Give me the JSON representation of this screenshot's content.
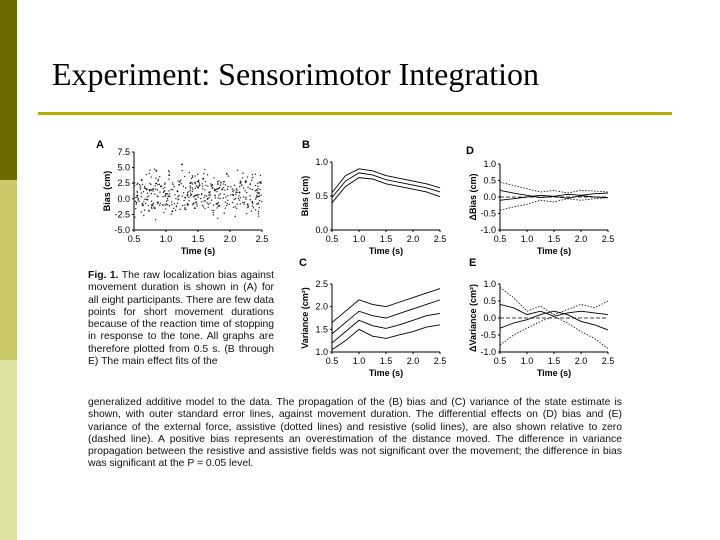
{
  "slide": {
    "title": "Experiment: Sensorimotor Integration",
    "accent_color": "#b3ae00",
    "sidebar_colors": [
      "#6b6b00",
      "#c9c96a",
      "#e0e0a0"
    ]
  },
  "figure": {
    "caption": {
      "lead": "Fig. 1.",
      "left_text": "The raw localization bias against movement duration is shown in (A) for all eight participants. There are few data points for short movement durations because of the reaction time of stopping in response to the tone. All graphs are therefore plotted from 0.5 s. (B through E) The main effect fits of the",
      "full_text": "generalized additive model to the data. The propagation of the (B) bias and (C) variance of the state estimate is shown, with outer standard error lines, against movement duration. The differential effects on (D) bias and (E) variance of the external force, assistive (dotted lines) and resistive (solid lines), are also shown relative to zero (dashed line). A positive bias represents an overestimation of the distance moved. The difference in variance propagation between the resistive and assistive fields was not significant over the movement; the difference in bias was significant at the P = 0.05 level."
    },
    "panels": {
      "A": {
        "letter": "A",
        "ylabel": "Bias (cm)",
        "xlabel": "Time (s)",
        "yticks": [
          "7.5",
          "5.0",
          "2.5",
          "0.0",
          "-2.5",
          "-5.0"
        ],
        "xticks": [
          "0.5",
          "1.0",
          "1.5",
          "2.0",
          "2.5"
        ]
      },
      "B": {
        "letter": "B",
        "ylabel": "Bias (cm)",
        "xlabel": "Time (s)",
        "yticks": [
          "1.0",
          "0.5",
          "0.0"
        ],
        "xticks": [
          "0.5",
          "1.0",
          "1.5",
          "2.0",
          "2.5"
        ]
      },
      "C": {
        "letter": "C",
        "ylabel": "Variance (cm²)",
        "xlabel": "Time (s)",
        "yticks": [
          "2.5",
          "2.0",
          "1.5",
          "1.0"
        ],
        "xticks": [
          "0.5",
          "1.0",
          "1.5",
          "2.0",
          "2.5"
        ]
      },
      "D": {
        "letter": "D",
        "ylabel": "ΔBias (cm)",
        "xlabel": "Time (s)",
        "yticks": [
          "1.0",
          "0.5",
          "0.0",
          "-0.5",
          "-1.0"
        ],
        "xticks": [
          "0.5",
          "1.0",
          "1.5",
          "2.0",
          "2.5"
        ]
      },
      "E": {
        "letter": "E",
        "ylabel": "ΔVariance (cm²)",
        "xlabel": "Time (s)",
        "yticks": [
          "1.0",
          "0.5",
          "0.0",
          "-0.5",
          "-1.0"
        ],
        "xticks": [
          "0.5",
          "1.0",
          "1.5",
          "2.0",
          "2.5"
        ]
      }
    }
  },
  "chart_data": [
    {
      "panel": "A",
      "type": "scatter",
      "xlabel": "Time (s)",
      "ylabel": "Bias (cm)",
      "xlim": [
        0.5,
        2.5
      ],
      "ylim": [
        -5.0,
        7.5
      ],
      "x": [
        0.55,
        0.62,
        0.7,
        0.78,
        0.85,
        0.92,
        1.0,
        1.05,
        1.1,
        1.18,
        1.25,
        1.3,
        1.38,
        1.45,
        1.5,
        1.58,
        1.65,
        1.72,
        1.8,
        1.88,
        1.95,
        2.05,
        2.15,
        2.25,
        2.35,
        2.45
      ],
      "y": [
        0.5,
        3.0,
        1.5,
        -1.0,
        4.5,
        2.0,
        0.8,
        3.8,
        -2.0,
        1.2,
        5.5,
        0.2,
        2.5,
        -1.5,
        1.8,
        3.2,
        0.0,
        2.2,
        -0.8,
        1.5,
        4.0,
        0.6,
        1.0,
        2.8,
        -0.5,
        0.9
      ]
    },
    {
      "panel": "B",
      "type": "line",
      "xlabel": "Time (s)",
      "ylabel": "Bias (cm)",
      "xlim": [
        0.5,
        2.5
      ],
      "ylim": [
        0.0,
        1.0
      ],
      "x": [
        0.5,
        0.75,
        1.0,
        1.25,
        1.5,
        1.75,
        2.0,
        2.25,
        2.5
      ],
      "series": [
        {
          "values": [
            0.55,
            0.8,
            0.9,
            0.87,
            0.8,
            0.76,
            0.72,
            0.68,
            0.62
          ]
        },
        {
          "values": [
            0.48,
            0.72,
            0.84,
            0.81,
            0.74,
            0.7,
            0.66,
            0.62,
            0.56
          ]
        },
        {
          "values": [
            0.4,
            0.64,
            0.77,
            0.75,
            0.68,
            0.64,
            0.6,
            0.56,
            0.49
          ]
        }
      ]
    },
    {
      "panel": "C",
      "type": "line",
      "xlabel": "Time (s)",
      "ylabel": "Variance (cm²)",
      "xlim": [
        0.5,
        2.5
      ],
      "ylim": [
        1.0,
        2.5
      ],
      "x": [
        0.5,
        0.75,
        1.0,
        1.25,
        1.5,
        1.75,
        2.0,
        2.25,
        2.5
      ],
      "series": [
        {
          "values": [
            1.65,
            1.9,
            2.15,
            2.05,
            2.0,
            2.1,
            2.2,
            2.3,
            2.4
          ]
        },
        {
          "values": [
            1.4,
            1.65,
            1.9,
            1.8,
            1.75,
            1.85,
            1.95,
            2.05,
            2.15
          ]
        },
        {
          "values": [
            1.2,
            1.45,
            1.7,
            1.58,
            1.52,
            1.6,
            1.7,
            1.8,
            1.85
          ]
        },
        {
          "values": [
            1.05,
            1.25,
            1.5,
            1.35,
            1.3,
            1.38,
            1.45,
            1.55,
            1.6
          ]
        }
      ]
    },
    {
      "panel": "D",
      "type": "line",
      "xlabel": "Time (s)",
      "ylabel": "ΔBias (cm)",
      "xlim": [
        0.5,
        2.5
      ],
      "ylim": [
        -1.0,
        1.0
      ],
      "x": [
        0.5,
        0.75,
        1.0,
        1.25,
        1.5,
        1.75,
        2.0,
        2.25,
        2.5
      ],
      "series": [
        {
          "values": [
            0.45,
            0.35,
            0.25,
            0.15,
            0.2,
            0.12,
            0.2,
            0.18,
            0.15
          ]
        },
        {
          "values": [
            0.2,
            0.12,
            0.05,
            -0.02,
            0.02,
            -0.04,
            0.04,
            0.0,
            -0.02
          ]
        },
        {
          "values": [
            0.0,
            0.0,
            0.0,
            0.0,
            0.0,
            0.0,
            0.0,
            0.0,
            0.0
          ]
        },
        {
          "values": [
            -0.1,
            -0.05,
            0.0,
            0.05,
            0.02,
            0.08,
            0.05,
            0.1,
            0.12
          ]
        },
        {
          "values": [
            -0.4,
            -0.3,
            -0.22,
            -0.1,
            -0.15,
            -0.05,
            -0.1,
            -0.05,
            -0.02
          ]
        }
      ]
    },
    {
      "panel": "E",
      "type": "line",
      "xlabel": "Time (s)",
      "ylabel": "ΔVariance (cm²)",
      "xlim": [
        0.5,
        2.5
      ],
      "ylim": [
        -1.0,
        1.0
      ],
      "x": [
        0.5,
        0.75,
        1.0,
        1.25,
        1.5,
        1.75,
        2.0,
        2.25,
        2.5
      ],
      "series": [
        {
          "values": [
            0.9,
            0.6,
            0.2,
            0.35,
            0.1,
            0.25,
            0.4,
            0.3,
            0.5
          ]
        },
        {
          "values": [
            0.4,
            0.3,
            0.1,
            0.2,
            0.05,
            0.15,
            0.2,
            0.15,
            0.1
          ]
        },
        {
          "values": [
            0.0,
            0.0,
            0.0,
            0.0,
            0.0,
            0.0,
            0.0,
            0.0,
            0.0
          ]
        },
        {
          "values": [
            -0.3,
            -0.15,
            -0.05,
            0.1,
            0.2,
            0.1,
            -0.1,
            -0.2,
            -0.35
          ]
        },
        {
          "values": [
            -0.8,
            -0.5,
            -0.3,
            -0.1,
            0.05,
            -0.15,
            -0.4,
            -0.6,
            -0.9
          ]
        }
      ]
    }
  ]
}
